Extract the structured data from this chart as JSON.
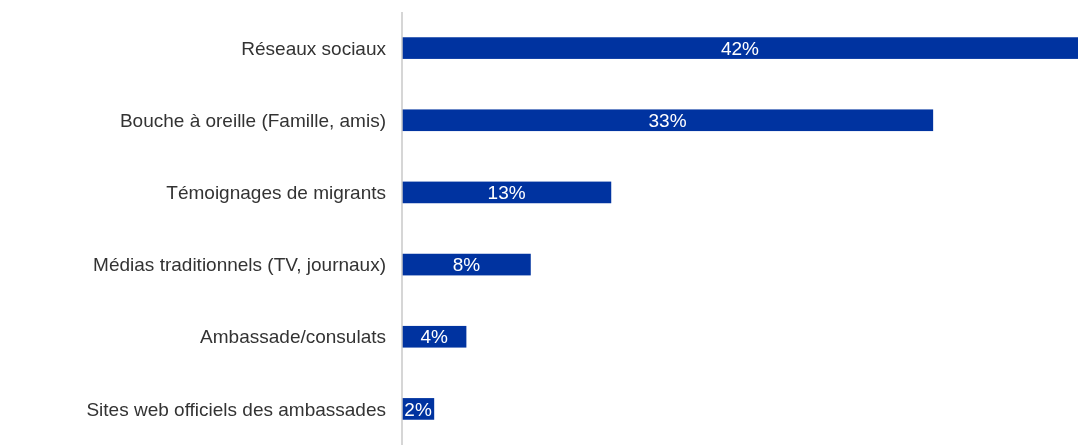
{
  "chart_data": {
    "type": "bar",
    "orientation": "horizontal",
    "categories": [
      "Réseaux sociaux",
      "Bouche à oreille (Famille, amis)",
      "Témoignages de migrants",
      "Médias traditionnels (TV, journaux)",
      "Ambassade/consulats",
      "Sites web officiels des ambassades"
    ],
    "values": [
      42,
      33,
      13,
      8,
      4,
      2
    ],
    "value_labels": [
      "42%",
      "33%",
      "13%",
      "8%",
      "4%",
      "2%"
    ],
    "color": "#0033a0",
    "xlim": [
      0,
      42
    ],
    "tick_labels": "y",
    "grid": false
  }
}
